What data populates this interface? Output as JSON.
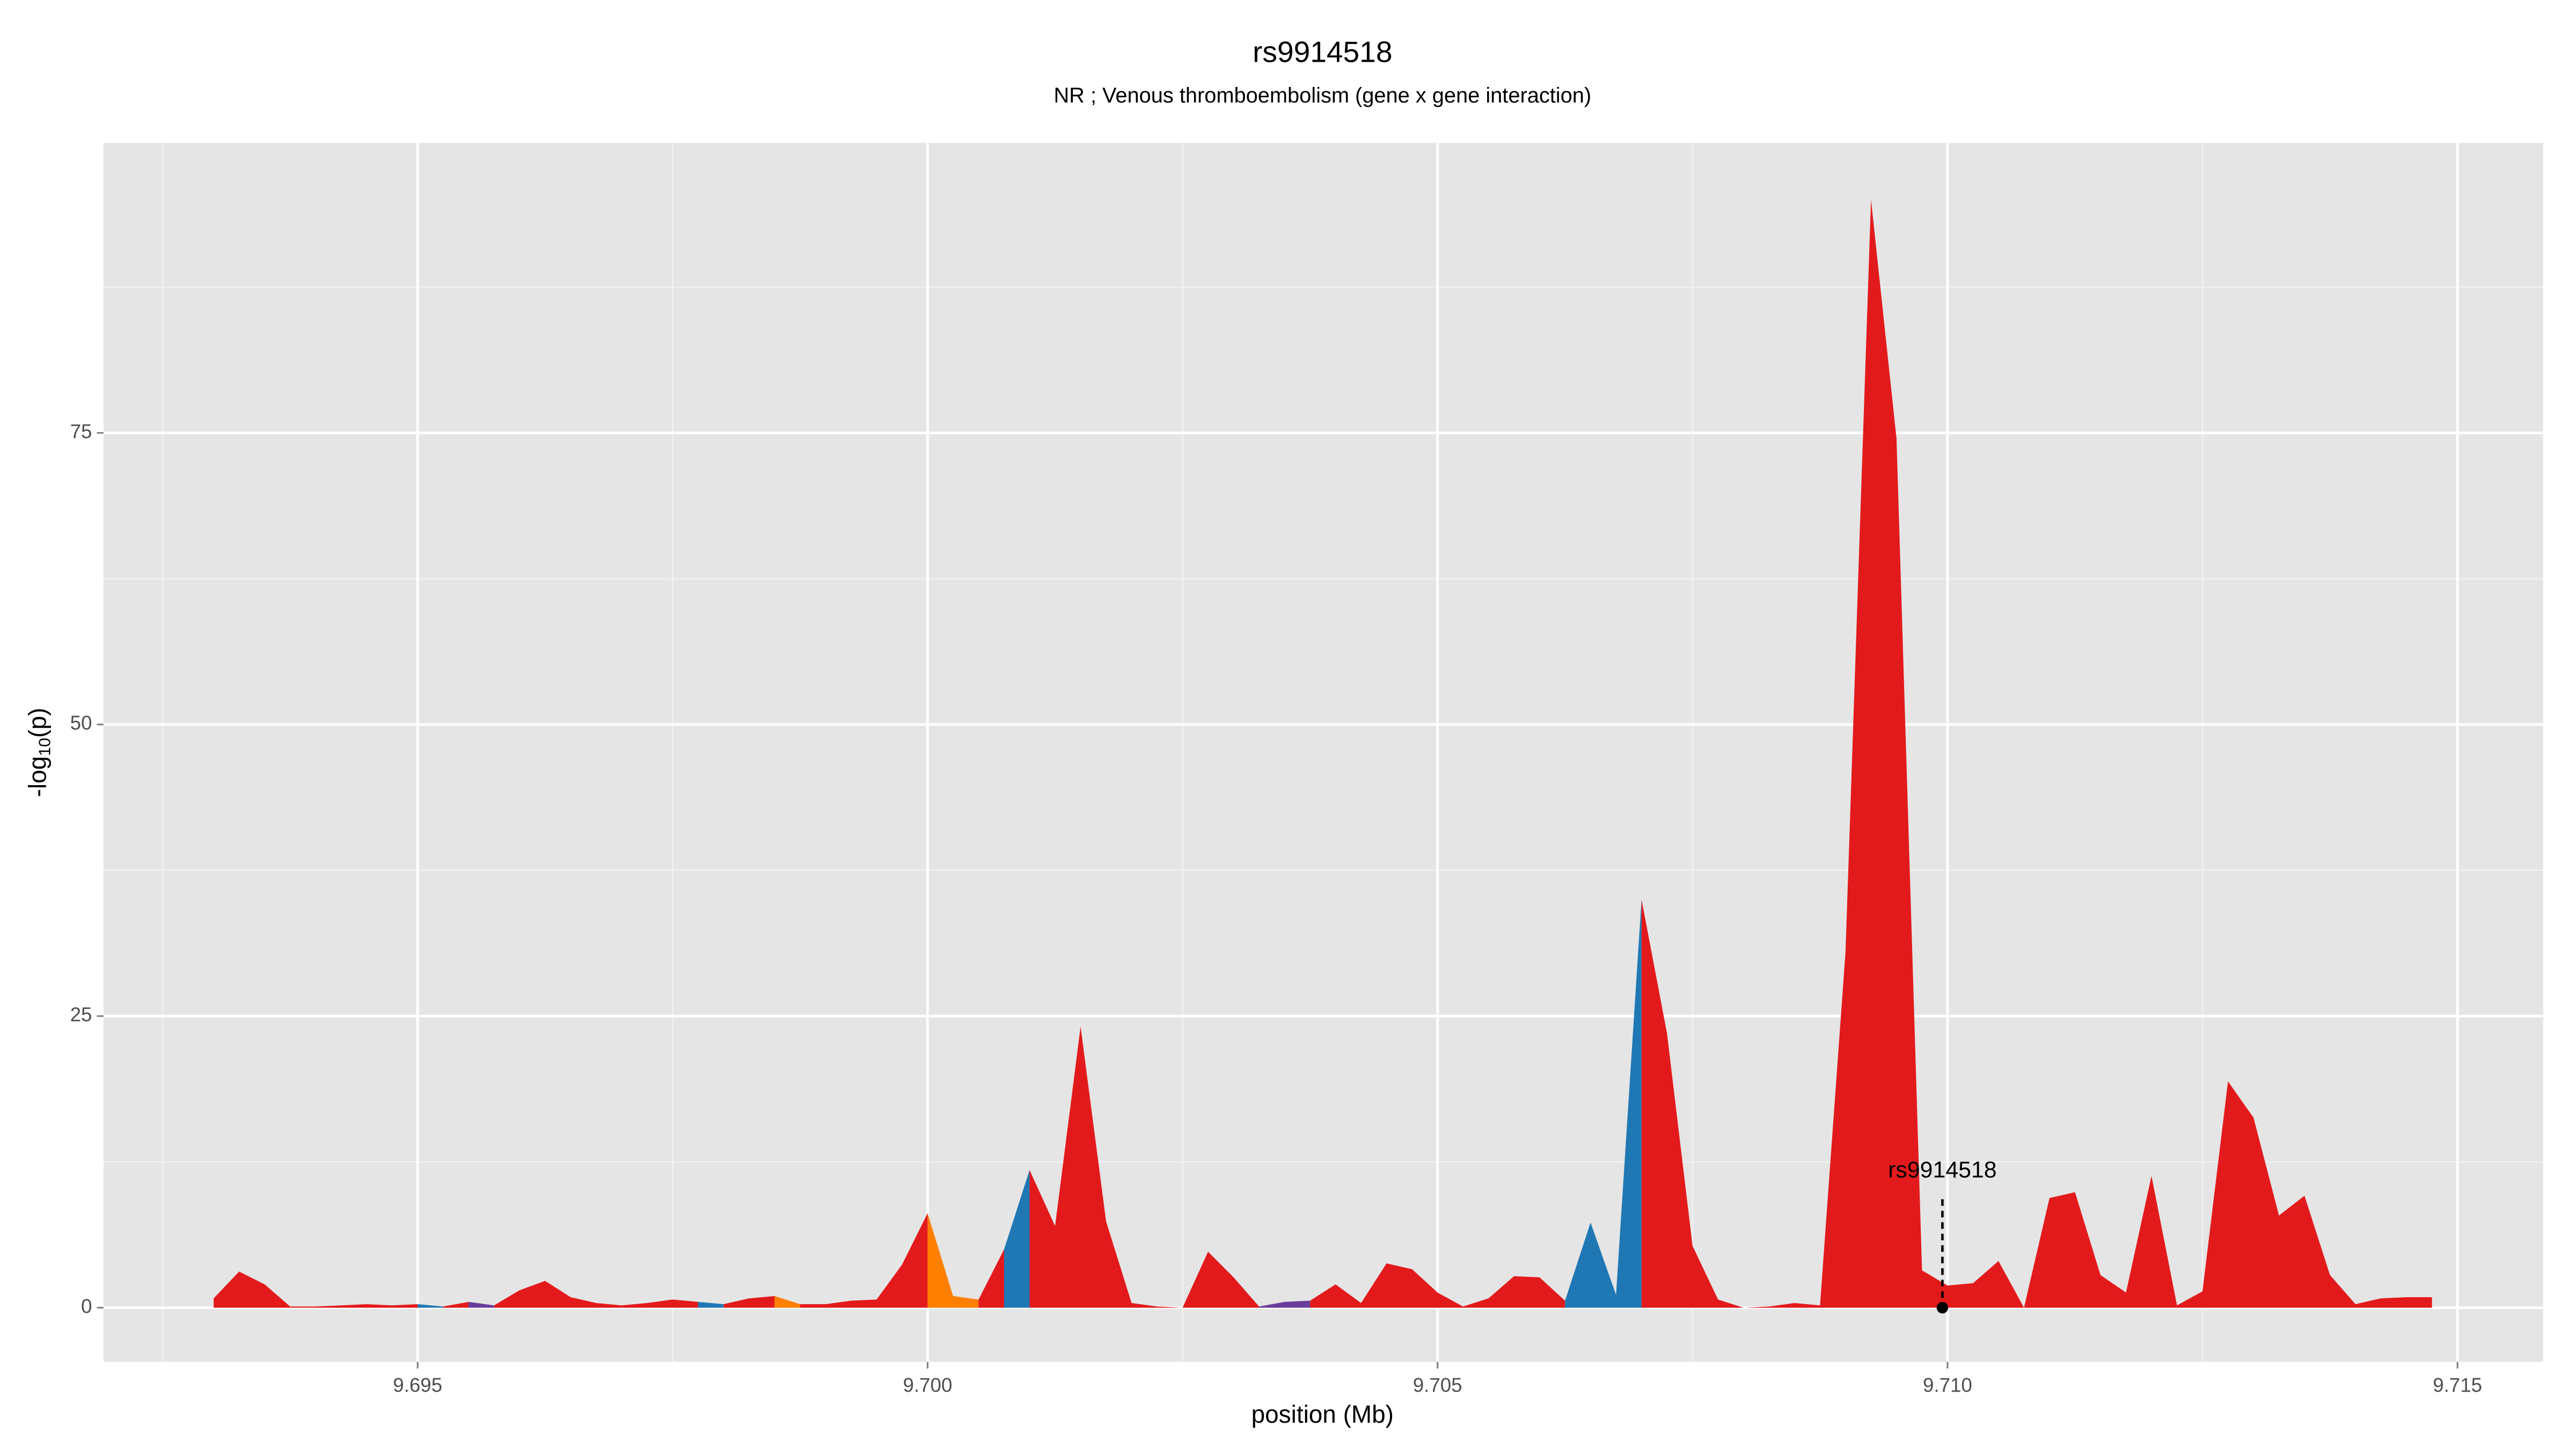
{
  "chart_data": {
    "type": "area",
    "title": "rs9914518",
    "subtitle": "NR ; Venous thromboembolism (gene x gene interaction)",
    "x_label": "position (Mb)",
    "y_label": [
      "-log",
      "10",
      "(p)"
    ],
    "x": [
      9.693,
      9.69325,
      9.6935,
      9.69375,
      9.694,
      9.69425,
      9.6945,
      9.69475,
      9.695,
      9.69525,
      9.6955,
      9.69575,
      9.696,
      9.69625,
      9.6965,
      9.69675,
      9.697,
      9.69725,
      9.6975,
      9.69775,
      9.698,
      9.69825,
      9.6985,
      9.69875,
      9.699,
      9.69925,
      9.6995,
      9.69975,
      9.7,
      9.70025,
      9.7005,
      9.70075,
      9.701,
      9.70125,
      9.7015,
      9.70175,
      9.702,
      9.70225,
      9.7025,
      9.70275,
      9.703,
      9.70325,
      9.7035,
      9.70375,
      9.704,
      9.70425,
      9.7045,
      9.70475,
      9.705,
      9.70525,
      9.7055,
      9.70575,
      9.706,
      9.70625,
      9.7065,
      9.70675,
      9.707,
      9.70725,
      9.7075,
      9.70775,
      9.708,
      9.70825,
      9.7085,
      9.70875,
      9.709,
      9.70925,
      9.7095,
      9.70975,
      9.71,
      9.71025,
      9.7105,
      9.71075,
      9.711,
      9.71125,
      9.7115,
      9.71175,
      9.712,
      9.71225,
      9.7125,
      9.71275,
      9.713,
      9.71325,
      9.7135,
      9.71375,
      9.714,
      9.71425,
      9.7145,
      9.71475
    ],
    "values": [
      0.8,
      3.1,
      2.0,
      0.1,
      0.1,
      0.2,
      0.3,
      0.2,
      0.3,
      0.1,
      0.5,
      0.2,
      1.5,
      2.3,
      0.9,
      0.4,
      0.2,
      0.4,
      0.7,
      0.5,
      0.3,
      0.8,
      1.0,
      0.3,
      0.3,
      0.6,
      0.7,
      3.7,
      8.1,
      1.0,
      0.7,
      5.0,
      11.8,
      7.0,
      24.1,
      7.4,
      0.4,
      0.1,
      0.0,
      4.8,
      2.6,
      0.1,
      0.5,
      0.6,
      2.0,
      0.4,
      3.8,
      3.3,
      1.3,
      0.1,
      0.8,
      2.7,
      2.6,
      0.6,
      7.3,
      1.1,
      35.0,
      23.5,
      5.3,
      0.7,
      0.0,
      0.1,
      0.4,
      0.2,
      30.5,
      95.0,
      74.5,
      3.2,
      1.9,
      2.1,
      4.0,
      0.0,
      9.4,
      9.9,
      2.8,
      1.3,
      11.3,
      0.2,
      1.4,
      19.4,
      16.3,
      7.9,
      9.6,
      2.8,
      0.3,
      0.8,
      0.9,
      0.9
    ],
    "colors": [
      "#e31a1c",
      "#e31a1c",
      "#e31a1c",
      "#e31a1c",
      "#e31a1c",
      "#e31a1c",
      "#e31a1c",
      "#e31a1c",
      "#1f78b4",
      "#e31a1c",
      "#6a3d9a",
      "#e31a1c",
      "#e31a1c",
      "#e31a1c",
      "#e31a1c",
      "#e31a1c",
      "#e31a1c",
      "#e31a1c",
      "#e31a1c",
      "#1f78b4",
      "#e31a1c",
      "#e31a1c",
      "#ff7f00",
      "#e31a1c",
      "#e31a1c",
      "#e31a1c",
      "#e31a1c",
      "#e31a1c",
      "#ff7f00",
      "#ff7f00",
      "#e31a1c",
      "#1f78b4",
      "#e31a1c",
      "#e31a1c",
      "#e31a1c",
      "#e31a1c",
      "#e31a1c",
      "#e31a1c",
      "#e31a1c",
      "#e31a1c",
      "#e31a1c",
      "#6a3d9a",
      "#6a3d9a",
      "#e31a1c",
      "#e31a1c",
      "#e31a1c",
      "#e31a1c",
      "#e31a1c",
      "#e31a1c",
      "#e31a1c",
      "#e31a1c",
      "#e31a1c",
      "#e31a1c",
      "#1f78b4",
      "#1f78b4",
      "#1f78b4",
      "#e31a1c",
      "#e31a1c",
      "#e31a1c",
      "#e31a1c",
      "#e31a1c",
      "#e31a1c",
      "#e31a1c",
      "#e31a1c",
      "#e31a1c",
      "#e31a1c",
      "#e31a1c",
      "#e31a1c",
      "#e31a1c",
      "#e31a1c",
      "#e31a1c",
      "#e31a1c",
      "#e31a1c",
      "#e31a1c",
      "#e31a1c",
      "#e31a1c",
      "#e31a1c",
      "#e31a1c",
      "#e31a1c",
      "#e31a1c",
      "#e31a1c",
      "#e31a1c",
      "#e31a1c",
      "#e31a1c",
      "#e31a1c",
      "#e31a1c",
      "#e31a1c",
      "#e31a1c"
    ],
    "highlight": {
      "label": "rs9914518",
      "x": 9.70995,
      "y": 0
    },
    "xlim": [
      9.69192,
      9.71584
    ],
    "ylim": [
      -4.65,
      99.86
    ],
    "xticks": [
      9.695,
      {
        "value": 9.7,
        "label": "9.700"
      },
      9.705,
      {
        "value": 9.71,
        "label": "9.710"
      },
      9.715
    ],
    "yticks": [
      0,
      25,
      50,
      75
    ],
    "minor_xticks": [
      9.6925,
      9.6975,
      9.7025,
      9.7075,
      9.7125
    ],
    "minor_yticks": [
      12.5,
      37.5,
      62.5,
      87.5
    ],
    "grid": true
  }
}
